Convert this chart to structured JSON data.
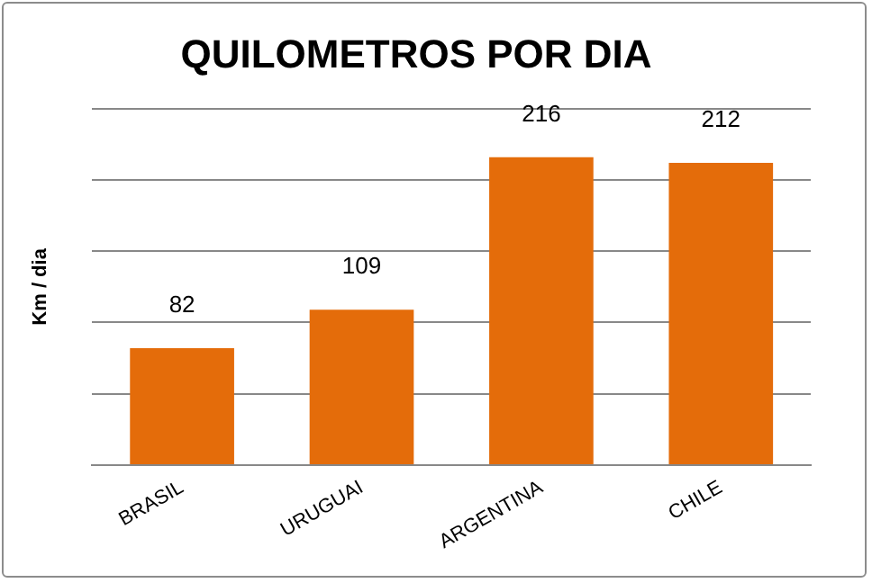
{
  "chart_data": {
    "type": "bar",
    "title": "QUILOMETROS POR DIA",
    "ylabel": "Km / dia",
    "categories": [
      "BRASIL",
      "URUGUAI",
      "ARGENTINA",
      "CHILE"
    ],
    "values": [
      82,
      109,
      216,
      212
    ],
    "color": "#e46c0a",
    "ylim": [
      0,
      250
    ],
    "yticks": [
      {
        "value": 0,
        "label": null
      },
      {
        "value": 50,
        "label": null
      },
      {
        "value": 100,
        "label": null
      },
      {
        "value": 150,
        "label": null
      },
      {
        "value": 200,
        "label": null
      },
      {
        "value": 250,
        "label": null
      }
    ],
    "tick_labels": "x",
    "grid": "y",
    "data_labels": true,
    "legend": false
  }
}
